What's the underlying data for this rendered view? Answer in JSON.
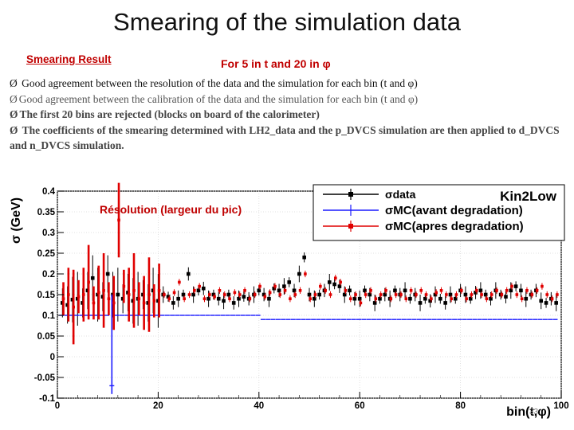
{
  "slide": {
    "title": "Smearing of the simulation data",
    "subtitle": "Smearing Result",
    "subtitle2": "For 5 in t and  20 in φ",
    "bullet_marker": "Ø",
    "bullets": [
      "Good agreement between  the resolution of the data and the simulation for each bin  (t and φ)",
      "Good agreement between  the calibration of the data and the simulation for each bin  (t and φ)",
      "The first 20 bins are rejected  (blocks on board of the calorimeter)",
      " The coefficients of the smearing determined  with LH2_data  and the  p_DVCS simulation are then applied to d_DVCS and n_DVCS simulation."
    ],
    "page_number": "33"
  },
  "colors": {
    "data": "#000000",
    "mc_before": "#1a1aff",
    "mc_after": "#e00000",
    "annotation": "#c00000"
  },
  "chart_data": {
    "type": "scatter",
    "title": "Kin2Low",
    "annotation": "Résolution (largeur du pic)",
    "xlabel": "bin(t,φ)",
    "ylabel": "σ (GeV)",
    "xlim": [
      0,
      100
    ],
    "ylim": [
      -0.1,
      0.4
    ],
    "x_ticks": [
      0,
      20,
      40,
      60,
      80,
      100
    ],
    "y_ticks": [
      -0.1,
      -0.05,
      0,
      0.05,
      0.1,
      0.15,
      0.2,
      0.25,
      0.3,
      0.35,
      0.4
    ],
    "legend": {
      "position": "top-right",
      "entries": [
        "σdata",
        "σMC(avant degradation)",
        "σMC(apres degradation)"
      ]
    },
    "series": [
      {
        "name": "σdata",
        "color": "#000000",
        "x": [
          1,
          2,
          3,
          4,
          5,
          6,
          7,
          8,
          9,
          10,
          11,
          12,
          13,
          14,
          15,
          16,
          17,
          18,
          19,
          20,
          21,
          22,
          23,
          24,
          25,
          26,
          27,
          28,
          29,
          30,
          31,
          32,
          33,
          34,
          35,
          36,
          37,
          38,
          39,
          40,
          41,
          42,
          43,
          44,
          45,
          46,
          47,
          48,
          49,
          50,
          51,
          52,
          53,
          54,
          55,
          56,
          57,
          58,
          59,
          60,
          61,
          62,
          63,
          64,
          65,
          66,
          67,
          68,
          69,
          70,
          71,
          72,
          73,
          74,
          75,
          76,
          77,
          78,
          79,
          80,
          81,
          82,
          83,
          84,
          85,
          86,
          87,
          88,
          89,
          90,
          91,
          92,
          93,
          94,
          95,
          96,
          97,
          98,
          99
        ],
        "y": [
          0.13,
          0.125,
          0.138,
          0.14,
          0.13,
          0.16,
          0.19,
          0.15,
          0.145,
          0.2,
          0.15,
          0.15,
          0.14,
          0.155,
          0.135,
          0.14,
          0.15,
          0.13,
          0.16,
          0.135,
          0.15,
          0.145,
          0.13,
          0.14,
          0.15,
          0.2,
          0.15,
          0.16,
          0.165,
          0.14,
          0.15,
          0.14,
          0.135,
          0.15,
          0.13,
          0.14,
          0.145,
          0.14,
          0.15,
          0.16,
          0.15,
          0.14,
          0.165,
          0.16,
          0.17,
          0.18,
          0.16,
          0.2,
          0.24,
          0.15,
          0.14,
          0.15,
          0.16,
          0.18,
          0.175,
          0.17,
          0.15,
          0.16,
          0.14,
          0.14,
          0.16,
          0.15,
          0.13,
          0.14,
          0.15,
          0.14,
          0.16,
          0.15,
          0.16,
          0.14,
          0.15,
          0.13,
          0.14,
          0.135,
          0.15,
          0.14,
          0.13,
          0.15,
          0.14,
          0.16,
          0.15,
          0.14,
          0.155,
          0.16,
          0.15,
          0.14,
          0.16,
          0.15,
          0.145,
          0.16,
          0.17,
          0.16,
          0.14,
          0.15,
          0.16,
          0.135,
          0.13,
          0.14,
          0.13
        ]
      },
      {
        "name": "σMC(avant degradation)",
        "color": "#1a1aff",
        "x": [
          1,
          2,
          3,
          4,
          5,
          6,
          7,
          8,
          9,
          10,
          11,
          12,
          13,
          14,
          15,
          16,
          17,
          18,
          19,
          20,
          21,
          22,
          23,
          24,
          25,
          26,
          27,
          28,
          29,
          30,
          31,
          32,
          33,
          34,
          35,
          36,
          37,
          38,
          39,
          40,
          41,
          42,
          43,
          44,
          45,
          46,
          47,
          48,
          49,
          50,
          51,
          52,
          53,
          54,
          55,
          56,
          57,
          58,
          59,
          60,
          61,
          62,
          63,
          64,
          65,
          66,
          67,
          68,
          69,
          70,
          71,
          72,
          73,
          74,
          75,
          76,
          77,
          78,
          79,
          80,
          81,
          82,
          83,
          84,
          85,
          86,
          87,
          88,
          89,
          90,
          91,
          92,
          93,
          94,
          95,
          96,
          97,
          98,
          99
        ],
        "y": [
          0.1,
          0.1,
          0.1,
          0.1,
          0.1,
          0.1,
          0.1,
          0.1,
          0.1,
          0.1,
          -0.07,
          0.1,
          0.1,
          0.1,
          0.1,
          0.1,
          0.1,
          0.1,
          0.1,
          0.1,
          0.1,
          0.1,
          0.1,
          0.1,
          0.1,
          0.1,
          0.1,
          0.1,
          0.1,
          0.1,
          0.1,
          0.1,
          0.1,
          0.1,
          0.1,
          0.1,
          0.1,
          0.1,
          0.1,
          0.1,
          0.09,
          0.09,
          0.09,
          0.09,
          0.09,
          0.09,
          0.09,
          0.09,
          0.09,
          0.09,
          0.09,
          0.09,
          0.09,
          0.09,
          0.09,
          0.09,
          0.09,
          0.09,
          0.09,
          0.09,
          0.09,
          0.09,
          0.09,
          0.09,
          0.09,
          0.09,
          0.09,
          0.09,
          0.09,
          0.09,
          0.09,
          0.09,
          0.09,
          0.09,
          0.09,
          0.09,
          0.09,
          0.09,
          0.09,
          0.09,
          0.09,
          0.09,
          0.09,
          0.09,
          0.09,
          0.09,
          0.09,
          0.09,
          0.09,
          0.09,
          0.09,
          0.09,
          0.09,
          0.09,
          0.09,
          0.09,
          0.09,
          0.09,
          0.09
        ]
      },
      {
        "name": "σMC(apres degradation)",
        "color": "#e00000",
        "x": [
          1,
          2,
          3,
          4,
          5,
          6,
          7,
          8,
          9,
          10,
          11,
          12,
          13,
          14,
          15,
          16,
          17,
          18,
          19,
          20,
          21,
          22,
          23,
          24,
          25,
          26,
          27,
          28,
          29,
          30,
          31,
          32,
          33,
          34,
          35,
          36,
          37,
          38,
          39,
          40,
          41,
          42,
          43,
          44,
          45,
          46,
          47,
          48,
          49,
          50,
          51,
          52,
          53,
          54,
          55,
          56,
          57,
          58,
          59,
          60,
          61,
          62,
          63,
          64,
          65,
          66,
          67,
          68,
          69,
          70,
          71,
          72,
          73,
          74,
          75,
          76,
          77,
          78,
          79,
          80,
          81,
          82,
          83,
          84,
          85,
          86,
          87,
          88,
          89,
          90,
          91,
          92,
          93,
          94,
          95,
          96,
          97,
          98,
          99
        ],
        "y": [
          0.14,
          0.15,
          0.12,
          0.145,
          0.15,
          0.18,
          0.13,
          0.155,
          0.16,
          0.14,
          0.13,
          0.33,
          0.17,
          0.15,
          0.16,
          0.14,
          0.13,
          0.15,
          0.135,
          0.16,
          0.15,
          0.14,
          0.155,
          0.18,
          0.14,
          0.15,
          0.16,
          0.17,
          0.14,
          0.15,
          0.145,
          0.16,
          0.15,
          0.14,
          0.155,
          0.15,
          0.16,
          0.14,
          0.15,
          0.17,
          0.145,
          0.155,
          0.17,
          0.15,
          0.16,
          0.14,
          0.15,
          0.16,
          0.2,
          0.14,
          0.15,
          0.17,
          0.16,
          0.15,
          0.19,
          0.18,
          0.16,
          0.14,
          0.15,
          0.13,
          0.15,
          0.16,
          0.14,
          0.15,
          0.16,
          0.14,
          0.15,
          0.15,
          0.14,
          0.16,
          0.15,
          0.16,
          0.15,
          0.14,
          0.155,
          0.16,
          0.15,
          0.14,
          0.15,
          0.16,
          0.14,
          0.15,
          0.16,
          0.15,
          0.14,
          0.15,
          0.16,
          0.15,
          0.16,
          0.17,
          0.15,
          0.14,
          0.16,
          0.15,
          0.16,
          0.17,
          0.15,
          0.14,
          0.15
        ]
      }
    ]
  }
}
